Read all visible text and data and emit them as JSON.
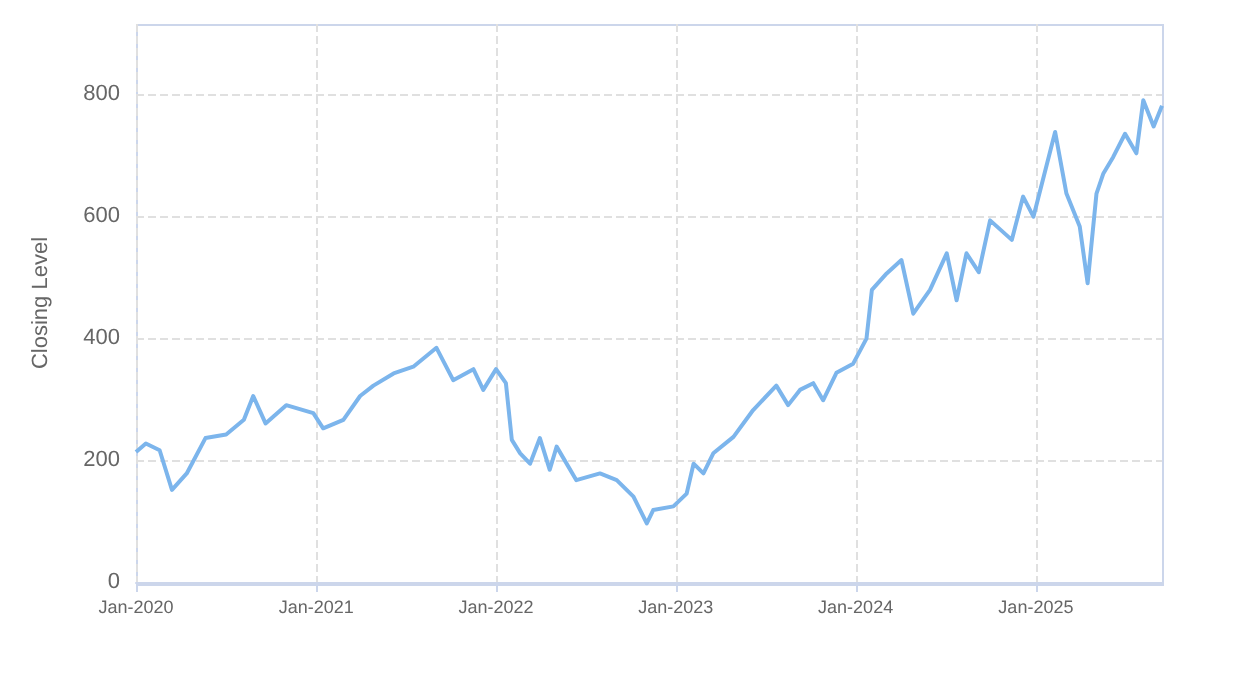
{
  "chart_data": {
    "type": "line",
    "ylabel": "Closing Level",
    "x": [
      "2020-01-01",
      "2020-01-21",
      "2020-02-18",
      "2020-03-14",
      "2020-04-13",
      "2020-05-21",
      "2020-07-02",
      "2020-08-07",
      "2020-08-26",
      "2020-09-20",
      "2020-11-01",
      "2020-12-26",
      "2021-01-15",
      "2021-02-25",
      "2021-03-31",
      "2021-04-27",
      "2021-06-07",
      "2021-07-17",
      "2021-09-02",
      "2021-10-06",
      "2021-11-16",
      "2021-12-06",
      "2022-01-01",
      "2022-01-21",
      "2022-02-02",
      "2022-02-19",
      "2022-03-11",
      "2022-03-31",
      "2022-04-20",
      "2022-05-04",
      "2022-06-13",
      "2022-07-31",
      "2022-09-03",
      "2022-10-07",
      "2022-11-03",
      "2022-11-16",
      "2022-12-27",
      "2023-01-23",
      "2023-02-06",
      "2023-02-26",
      "2023-03-18",
      "2023-04-28",
      "2023-06-07",
      "2023-07-24",
      "2023-08-17",
      "2023-09-10",
      "2023-10-07",
      "2023-10-27",
      "2023-11-23",
      "2023-12-27",
      "2024-01-23",
      "2024-02-03",
      "2024-03-04",
      "2024-04-03",
      "2024-04-27",
      "2024-05-31",
      "2024-07-04",
      "2024-07-24",
      "2024-08-13",
      "2024-09-07",
      "2024-09-30",
      "2024-11-13",
      "2024-12-06",
      "2024-12-27",
      "2025-02-09",
      "2025-03-04",
      "2025-03-31",
      "2025-04-16",
      "2025-05-04",
      "2025-05-18",
      "2025-06-07",
      "2025-07-01",
      "2025-07-24",
      "2025-08-07",
      "2025-08-28",
      "2025-09-14"
    ],
    "series": [
      {
        "color": "#7cb5ec",
        "values": [
          213,
          227,
          216,
          151,
          178,
          236,
          242,
          266,
          305,
          260,
          290,
          277,
          252,
          266,
          305,
          322,
          342,
          353,
          384,
          331,
          349,
          315,
          349,
          326,
          233,
          211,
          194,
          236,
          184,
          222,
          167,
          178,
          167,
          140,
          96,
          118,
          124,
          145,
          194,
          178,
          211,
          238,
          282,
          322,
          290,
          315,
          326,
          298,
          343,
          358,
          399,
          479,
          506,
          528,
          440,
          479,
          539,
          462,
          539,
          508,
          593,
          561,
          632,
          599,
          738,
          637,
          583,
          490,
          637,
          670,
          697,
          735,
          703,
          790,
          747,
          781
        ]
      }
    ],
    "xlim": [
      "2020-01-01",
      "2025-09-14"
    ],
    "xticks": [
      {
        "value": "2020-01-01",
        "label": "Jan-2020"
      },
      {
        "value": "2021-01-01",
        "label": "Jan-2021"
      },
      {
        "value": "2022-01-01",
        "label": "Jan-2022"
      },
      {
        "value": "2023-01-01",
        "label": "Jan-2023"
      },
      {
        "value": "2024-01-01",
        "label": "Jan-2024"
      },
      {
        "value": "2025-01-01",
        "label": "Jan-2025"
      }
    ],
    "ylim": [
      0,
      915
    ],
    "yticks": [
      0,
      200,
      400,
      600,
      800
    ],
    "grid": true,
    "marker": "none",
    "line_style": "solid"
  }
}
